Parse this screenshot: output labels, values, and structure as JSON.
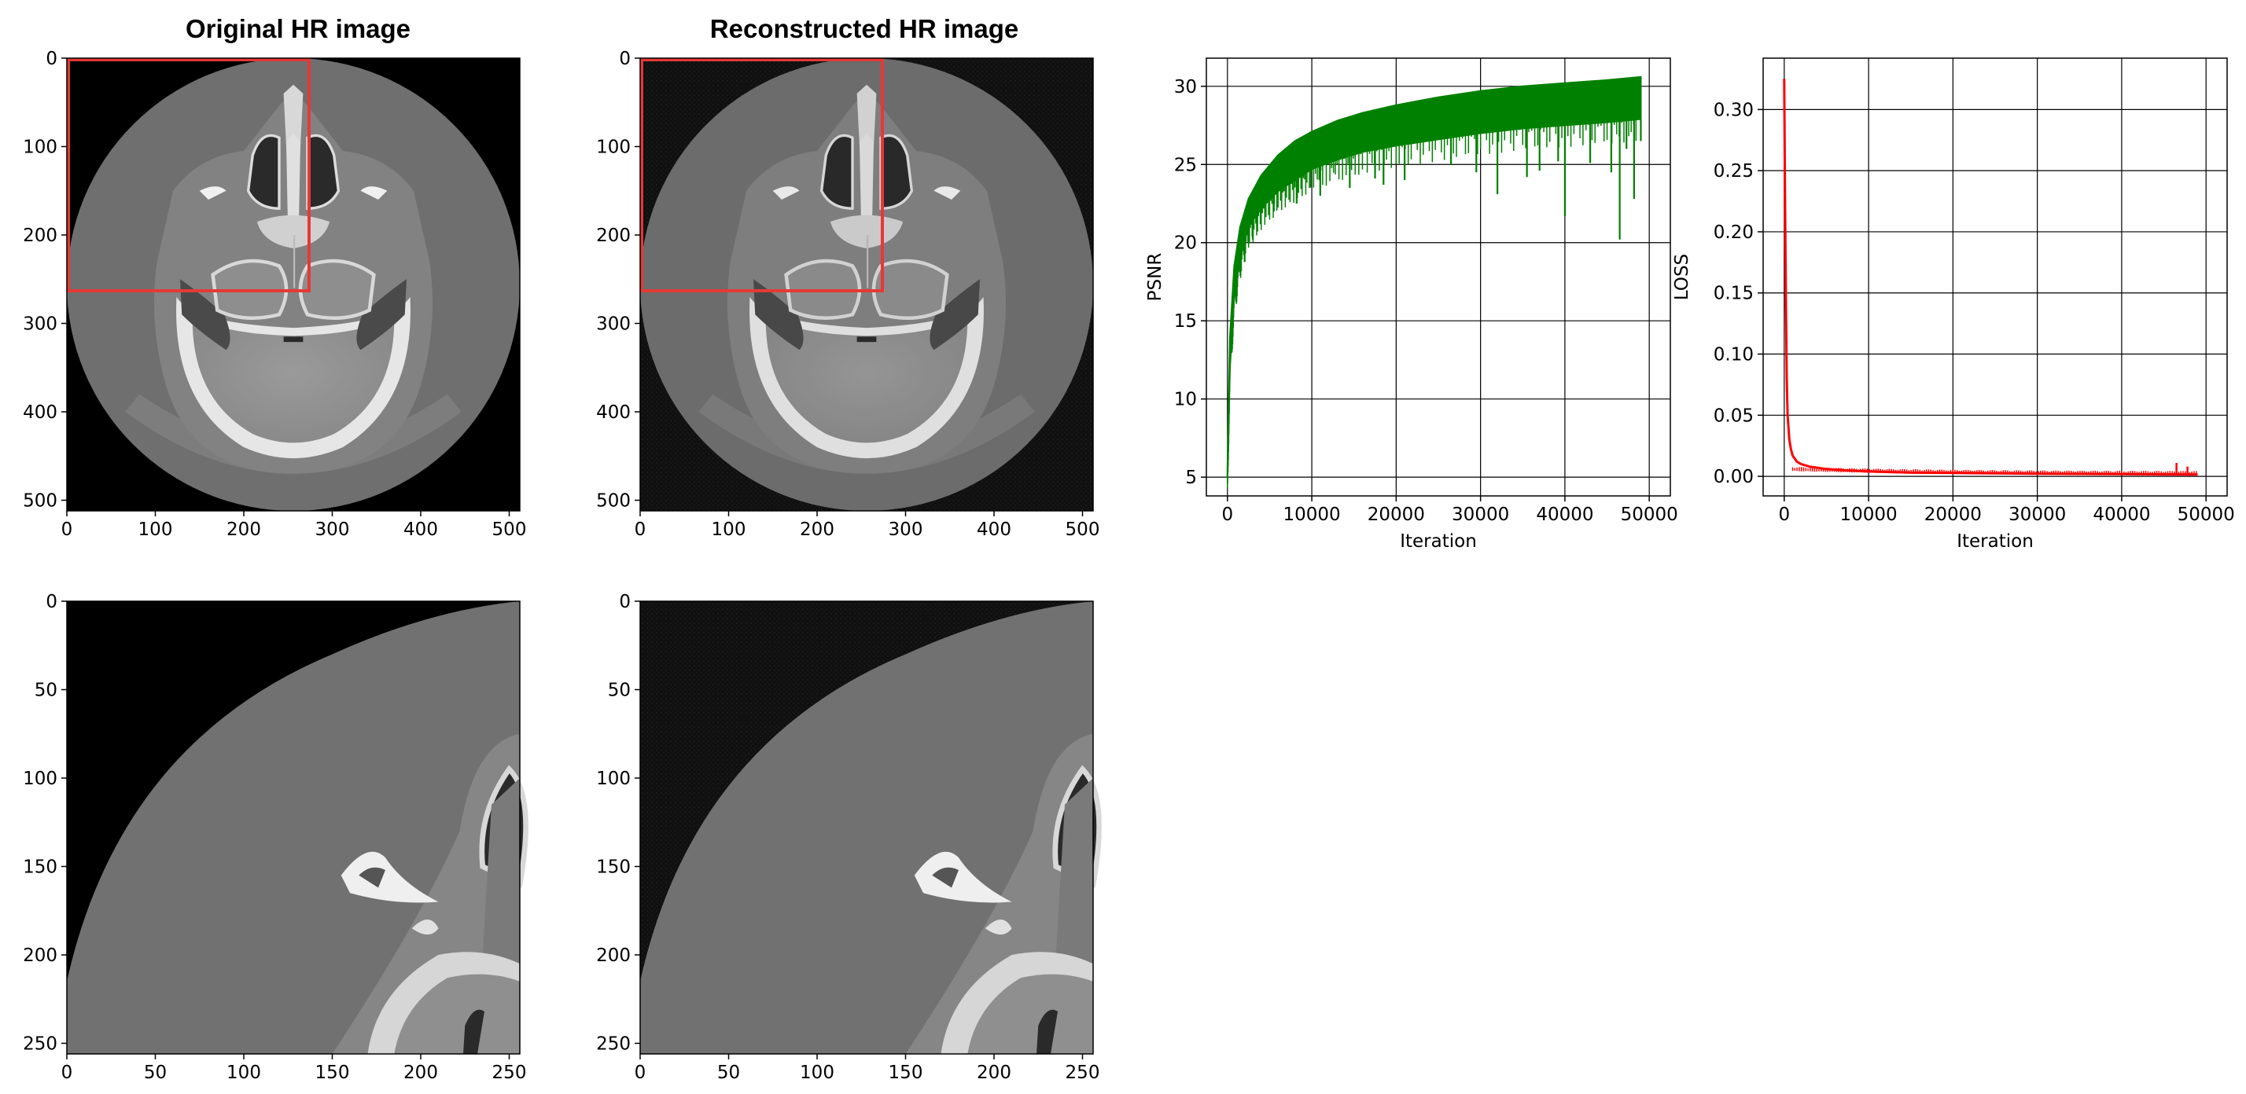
{
  "figure": {
    "panels": {
      "original_full": {
        "title": "Original HR image",
        "image_extent": [
          0,
          512
        ]
      },
      "reconstructed_full": {
        "title": "Reconstructed HR image",
        "image_extent": [
          0,
          512
        ]
      },
      "original_crop": {
        "title": "",
        "image_extent": [
          0,
          256
        ]
      },
      "reconstructed_crop": {
        "title": "",
        "image_extent": [
          0,
          256
        ]
      }
    },
    "roi_box": {
      "x": [
        0,
        272
      ],
      "y": [
        0,
        262
      ],
      "color": "#e53935"
    }
  },
  "chart_data": [
    {
      "type": "image",
      "panel": "original_full",
      "title": "Original HR image",
      "xticks": [
        0,
        100,
        200,
        300,
        400,
        500
      ],
      "yticks": [
        0,
        100,
        200,
        300,
        400,
        500
      ],
      "xlim": [
        0,
        512
      ],
      "ylim": [
        512,
        0
      ]
    },
    {
      "type": "image",
      "panel": "reconstructed_full",
      "title": "Reconstructed HR image",
      "xticks": [
        0,
        100,
        200,
        300,
        400,
        500
      ],
      "yticks": [
        0,
        100,
        200,
        300,
        400,
        500
      ],
      "xlim": [
        0,
        512
      ],
      "ylim": [
        512,
        0
      ]
    },
    {
      "type": "line",
      "panel": "psnr",
      "xlabel": "Iteration",
      "ylabel": "PSNR",
      "xticks": [
        0,
        10000,
        20000,
        30000,
        40000,
        50000
      ],
      "yticks": [
        5,
        10,
        15,
        20,
        25,
        30
      ],
      "xlim": [
        -2500,
        52500
      ],
      "ylim": [
        3.8,
        31.8
      ],
      "grid": true,
      "color": "#008000",
      "envelope_upper": [
        [
          0,
          5.5
        ],
        [
          300,
          14
        ],
        [
          800,
          18.5
        ],
        [
          1500,
          21
        ],
        [
          2500,
          22.8
        ],
        [
          4000,
          24.3
        ],
        [
          6000,
          25.6
        ],
        [
          8000,
          26.5
        ],
        [
          10000,
          27.1
        ],
        [
          13000,
          27.8
        ],
        [
          16000,
          28.3
        ],
        [
          20000,
          28.8
        ],
        [
          25000,
          29.3
        ],
        [
          30000,
          29.7
        ],
        [
          35000,
          30
        ],
        [
          40000,
          30.2
        ],
        [
          45000,
          30.4
        ],
        [
          49000,
          30.6
        ]
      ],
      "envelope_lower": [
        [
          0,
          5
        ],
        [
          300,
          12
        ],
        [
          800,
          16.5
        ],
        [
          1500,
          19
        ],
        [
          2500,
          21
        ],
        [
          4000,
          22.2
        ],
        [
          6000,
          23.3
        ],
        [
          8000,
          24
        ],
        [
          10000,
          24.7
        ],
        [
          13000,
          25.3
        ],
        [
          16000,
          25.8
        ],
        [
          20000,
          26.2
        ],
        [
          25000,
          26.6
        ],
        [
          30000,
          27
        ],
        [
          35000,
          27.3
        ],
        [
          40000,
          27.5
        ],
        [
          45000,
          27.7
        ],
        [
          49000,
          27.9
        ]
      ],
      "dips": [
        [
          1500,
          18.1
        ],
        [
          3000,
          20.2
        ],
        [
          5500,
          22
        ],
        [
          8200,
          22.5
        ],
        [
          11000,
          23
        ],
        [
          14500,
          23.5
        ],
        [
          17500,
          24.1
        ],
        [
          18500,
          23.7
        ],
        [
          21000,
          24
        ],
        [
          26500,
          25
        ],
        [
          29500,
          24.5
        ],
        [
          32000,
          23.1
        ],
        [
          35500,
          24.2
        ],
        [
          37000,
          24.6
        ],
        [
          39200,
          25.2
        ],
        [
          40000,
          21.7
        ],
        [
          43000,
          25.1
        ],
        [
          45500,
          24.5
        ],
        [
          46500,
          20.2
        ],
        [
          47300,
          26
        ],
        [
          48200,
          22.8
        ],
        [
          49000,
          26.5
        ]
      ]
    },
    {
      "type": "line",
      "panel": "loss",
      "xlabel": "Iteration",
      "ylabel": "LOSS",
      "xticks": [
        0,
        10000,
        20000,
        30000,
        40000,
        50000
      ],
      "yticks": [
        0.0,
        0.05,
        0.1,
        0.15,
        0.2,
        0.25,
        0.3
      ],
      "ytick_labels": [
        "0.00",
        "0.05",
        "0.10",
        "0.15",
        "0.20",
        "0.25",
        "0.30"
      ],
      "xlim": [
        -2500,
        52500
      ],
      "ylim": [
        -0.016,
        0.342
      ],
      "grid": true,
      "color": "#ff0000",
      "series": [
        [
          0,
          0.325
        ],
        [
          100,
          0.22
        ],
        [
          200,
          0.14
        ],
        [
          300,
          0.08
        ],
        [
          400,
          0.05
        ],
        [
          600,
          0.03
        ],
        [
          800,
          0.022
        ],
        [
          1000,
          0.017
        ],
        [
          1500,
          0.012
        ],
        [
          2000,
          0.01
        ],
        [
          3000,
          0.008
        ],
        [
          4000,
          0.007
        ],
        [
          5000,
          0.006
        ],
        [
          7000,
          0.005
        ],
        [
          10000,
          0.004
        ],
        [
          15000,
          0.003
        ],
        [
          20000,
          0.0028
        ],
        [
          25000,
          0.0025
        ],
        [
          30000,
          0.0022
        ],
        [
          35000,
          0.002
        ],
        [
          40000,
          0.0018
        ],
        [
          45000,
          0.0016
        ],
        [
          49000,
          0.0015
        ]
      ],
      "spikes": [
        [
          46500,
          0.011
        ],
        [
          47800,
          0.008
        ]
      ]
    },
    {
      "type": "image",
      "panel": "original_crop",
      "xticks": [
        0,
        50,
        100,
        150,
        200,
        250
      ],
      "yticks": [
        0,
        50,
        100,
        150,
        200,
        250
      ],
      "xlim": [
        0,
        256
      ],
      "ylim": [
        256,
        0
      ]
    },
    {
      "type": "image",
      "panel": "reconstructed_crop",
      "xticks": [
        0,
        50,
        100,
        150,
        200,
        250
      ],
      "yticks": [
        0,
        50,
        100,
        150,
        200,
        250
      ],
      "xlim": [
        0,
        256
      ],
      "ylim": [
        256,
        0
      ]
    }
  ]
}
